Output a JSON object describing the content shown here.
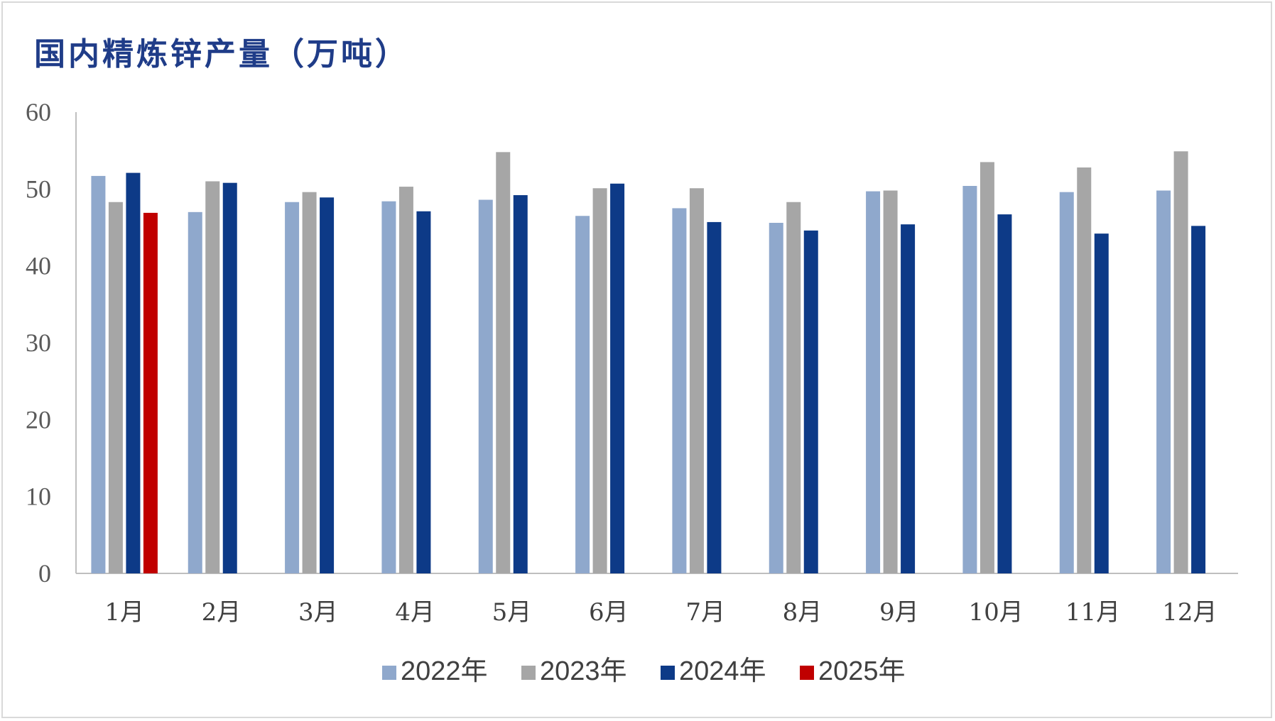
{
  "chart_data": {
    "type": "bar",
    "title": "国内精炼锌产量（万吨）",
    "xlabel": "",
    "ylabel": "",
    "ylim": [
      0,
      60
    ],
    "yticks": [
      0,
      10,
      20,
      30,
      40,
      50,
      60
    ],
    "grid": false,
    "legend_position": "bottom",
    "categories": [
      "1月",
      "2月",
      "3月",
      "4月",
      "5月",
      "6月",
      "7月",
      "8月",
      "9月",
      "10月",
      "11月",
      "12月"
    ],
    "series": [
      {
        "name": "2022年",
        "color": "#8fa8cc",
        "values": [
          51.7,
          47.0,
          48.3,
          48.4,
          48.6,
          46.5,
          47.5,
          45.6,
          49.7,
          50.4,
          49.6,
          49.8
        ]
      },
      {
        "name": "2023年",
        "color": "#a6a6a6",
        "values": [
          48.3,
          51.0,
          49.6,
          50.3,
          54.8,
          50.1,
          50.1,
          48.3,
          49.8,
          53.5,
          52.8,
          54.9
        ]
      },
      {
        "name": "2024年",
        "color": "#0d3a87",
        "values": [
          52.1,
          50.8,
          48.9,
          47.1,
          49.2,
          50.7,
          45.7,
          44.6,
          45.4,
          46.7,
          44.2,
          45.2
        ]
      },
      {
        "name": "2025年",
        "color": "#c00000",
        "values": [
          46.9,
          null,
          null,
          null,
          null,
          null,
          null,
          null,
          null,
          null,
          null,
          null
        ]
      }
    ]
  }
}
